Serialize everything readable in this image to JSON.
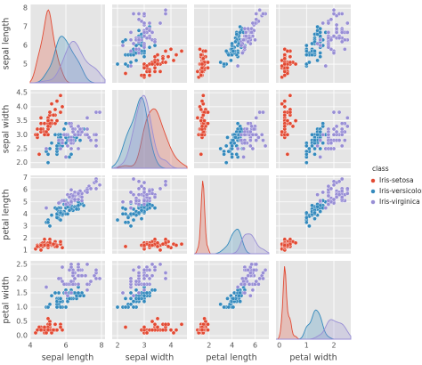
{
  "chart_data": {
    "type": "pairplot",
    "legend_title": "class",
    "legend": "right",
    "axes": [
      {
        "label": "sepal length",
        "lim": [
          4.0,
          8.2
        ],
        "xticks": [
          4,
          6,
          8
        ],
        "yticks": [
          5,
          6,
          7,
          8
        ]
      },
      {
        "label": "sepal width",
        "lim": [
          1.8,
          4.6
        ],
        "xticks": [
          2,
          3,
          4
        ],
        "yticks": [
          {
            "value": 2,
            "label": "2.0"
          },
          {
            "value": 2.5,
            "label": "2.5"
          },
          {
            "value": 3,
            "label": "3.0"
          },
          {
            "value": 3.5,
            "label": "3.5"
          },
          {
            "value": 4,
            "label": "4.0"
          },
          {
            "value": 4.5,
            "label": "4.5"
          }
        ]
      },
      {
        "label": "petal length",
        "lim": [
          0.7,
          7.2
        ],
        "xticks": [
          2,
          4,
          6
        ],
        "yticks": [
          1,
          2,
          3,
          4,
          5,
          6,
          7
        ]
      },
      {
        "label": "petal width",
        "lim": [
          -0.12,
          2.62
        ],
        "xticks": [
          0,
          1,
          2
        ],
        "yticks": [
          {
            "value": 0,
            "label": "0.0"
          },
          {
            "value": 0.5,
            "label": "0.5"
          },
          {
            "value": 1,
            "label": "1.0"
          },
          {
            "value": 1.5,
            "label": "1.5"
          },
          {
            "value": 2,
            "label": "2.0"
          },
          {
            "value": 2.5,
            "label": "2.5"
          }
        ]
      }
    ],
    "series": [
      {
        "name": "Iris-setosa",
        "color": "#e24a33",
        "data": [
          [
            5.1,
            4.9,
            4.7,
            4.6,
            5.0,
            5.4,
            4.6,
            5.0,
            4.4,
            4.9,
            5.4,
            4.8,
            4.8,
            4.3,
            5.8,
            5.7,
            5.4,
            5.1,
            5.7,
            5.1,
            5.4,
            5.1,
            4.6,
            5.1,
            4.8,
            5.0,
            5.0,
            5.2,
            5.2,
            4.7,
            4.8,
            5.4,
            5.2,
            5.5,
            4.9,
            5.0,
            5.5,
            4.9,
            4.4,
            5.1,
            5.0,
            4.5,
            4.4,
            5.0,
            5.1,
            4.8,
            5.1,
            4.6,
            5.3,
            5.0
          ],
          [
            3.5,
            3.0,
            3.2,
            3.1,
            3.6,
            3.9,
            3.4,
            3.4,
            2.9,
            3.1,
            3.7,
            3.4,
            3.0,
            3.0,
            4.0,
            4.4,
            3.9,
            3.5,
            3.8,
            3.8,
            3.4,
            3.7,
            3.6,
            3.3,
            3.4,
            3.0,
            3.4,
            3.5,
            3.4,
            3.2,
            3.1,
            3.4,
            4.1,
            4.2,
            3.1,
            3.2,
            3.5,
            3.1,
            3.0,
            3.4,
            3.5,
            2.3,
            3.2,
            3.5,
            3.8,
            3.0,
            3.8,
            3.2,
            3.7,
            3.3
          ],
          [
            1.4,
            1.4,
            1.3,
            1.5,
            1.4,
            1.7,
            1.4,
            1.5,
            1.4,
            1.5,
            1.5,
            1.6,
            1.4,
            1.1,
            1.2,
            1.5,
            1.3,
            1.4,
            1.7,
            1.5,
            1.7,
            1.5,
            1.0,
            1.7,
            1.9,
            1.6,
            1.6,
            1.5,
            1.4,
            1.6,
            1.6,
            1.5,
            1.5,
            1.4,
            1.5,
            1.2,
            1.3,
            1.5,
            1.3,
            1.5,
            1.3,
            1.3,
            1.3,
            1.6,
            1.9,
            1.4,
            1.6,
            1.4,
            1.5,
            1.4
          ],
          [
            0.2,
            0.2,
            0.2,
            0.2,
            0.2,
            0.4,
            0.3,
            0.2,
            0.2,
            0.1,
            0.2,
            0.2,
            0.1,
            0.1,
            0.2,
            0.4,
            0.4,
            0.3,
            0.3,
            0.3,
            0.2,
            0.4,
            0.2,
            0.5,
            0.2,
            0.2,
            0.4,
            0.2,
            0.2,
            0.2,
            0.2,
            0.4,
            0.1,
            0.2,
            0.1,
            0.2,
            0.2,
            0.1,
            0.2,
            0.2,
            0.3,
            0.3,
            0.2,
            0.6,
            0.4,
            0.3,
            0.2,
            0.2,
            0.2,
            0.2
          ]
        ]
      },
      {
        "name": "Iris-versicolor",
        "color": "#348abd",
        "data": [
          [
            7.0,
            6.4,
            6.9,
            5.5,
            6.5,
            5.7,
            6.3,
            4.9,
            6.6,
            5.2,
            5.0,
            5.9,
            6.0,
            6.1,
            5.6,
            6.7,
            5.6,
            5.8,
            6.2,
            5.6,
            5.9,
            6.1,
            6.3,
            6.1,
            6.4,
            6.6,
            6.8,
            6.7,
            6.0,
            5.7,
            5.5,
            5.5,
            5.8,
            6.0,
            5.4,
            6.0,
            6.7,
            6.3,
            5.6,
            5.5,
            5.5,
            6.1,
            5.8,
            5.0,
            5.6,
            5.7,
            5.7,
            6.2,
            5.1,
            5.7
          ],
          [
            3.2,
            3.2,
            3.1,
            2.3,
            2.8,
            2.8,
            3.3,
            2.4,
            2.9,
            2.7,
            2.0,
            3.0,
            2.2,
            2.9,
            2.9,
            3.1,
            3.0,
            2.7,
            2.2,
            2.5,
            3.2,
            2.8,
            2.5,
            2.8,
            2.9,
            3.0,
            2.8,
            3.0,
            2.9,
            2.6,
            2.4,
            2.4,
            2.7,
            2.7,
            3.0,
            3.4,
            3.1,
            2.3,
            3.0,
            2.5,
            2.6,
            3.0,
            2.6,
            2.3,
            2.7,
            3.0,
            2.9,
            2.9,
            2.5,
            2.8
          ],
          [
            4.7,
            4.5,
            4.9,
            4.0,
            4.6,
            4.5,
            4.7,
            3.3,
            4.6,
            3.9,
            3.5,
            4.2,
            4.0,
            4.7,
            3.6,
            4.4,
            4.5,
            4.1,
            4.5,
            3.9,
            4.8,
            4.0,
            4.9,
            4.7,
            4.3,
            4.4,
            4.8,
            5.0,
            4.5,
            3.5,
            3.8,
            3.7,
            3.9,
            5.1,
            4.5,
            4.5,
            4.7,
            4.4,
            4.1,
            4.0,
            4.4,
            4.6,
            4.0,
            3.3,
            4.2,
            4.2,
            4.2,
            4.3,
            3.0,
            4.1
          ],
          [
            1.4,
            1.5,
            1.5,
            1.3,
            1.5,
            1.3,
            1.6,
            1.0,
            1.3,
            1.4,
            1.0,
            1.5,
            1.0,
            1.4,
            1.3,
            1.4,
            1.5,
            1.0,
            1.5,
            1.1,
            1.8,
            1.3,
            1.5,
            1.2,
            1.3,
            1.4,
            1.4,
            1.7,
            1.5,
            1.0,
            1.1,
            1.0,
            1.2,
            1.6,
            1.5,
            1.6,
            1.5,
            1.3,
            1.3,
            1.3,
            1.2,
            1.4,
            1.2,
            1.0,
            1.3,
            1.2,
            1.3,
            1.3,
            1.1,
            1.3
          ]
        ]
      },
      {
        "name": "Iris-virginica",
        "color": "#988ed5",
        "data": [
          [
            6.3,
            5.8,
            7.1,
            6.3,
            6.5,
            7.6,
            4.9,
            7.3,
            6.7,
            7.2,
            6.5,
            6.4,
            6.8,
            5.7,
            5.8,
            6.4,
            6.5,
            7.7,
            7.7,
            6.0,
            6.9,
            5.6,
            7.7,
            6.3,
            6.7,
            7.2,
            6.2,
            6.1,
            6.4,
            7.2,
            7.4,
            7.9,
            6.4,
            6.3,
            6.1,
            7.7,
            6.3,
            6.4,
            6.0,
            6.9,
            6.7,
            6.9,
            5.8,
            6.8,
            6.7,
            6.7,
            6.3,
            6.5,
            6.2,
            5.9
          ],
          [
            3.3,
            2.7,
            3.0,
            2.9,
            3.0,
            3.0,
            2.5,
            2.9,
            2.5,
            3.6,
            3.2,
            2.7,
            3.0,
            2.5,
            2.8,
            3.2,
            3.0,
            3.8,
            2.6,
            2.2,
            3.2,
            2.8,
            2.8,
            2.7,
            3.3,
            3.2,
            2.8,
            3.0,
            2.8,
            3.0,
            2.8,
            3.8,
            2.8,
            2.8,
            2.6,
            3.0,
            3.4,
            3.1,
            3.0,
            3.1,
            3.1,
            3.1,
            2.7,
            3.2,
            3.3,
            3.0,
            2.5,
            3.0,
            3.4,
            3.0
          ],
          [
            6.0,
            5.1,
            5.9,
            5.6,
            5.8,
            6.6,
            4.5,
            6.3,
            5.8,
            6.1,
            5.1,
            5.3,
            5.5,
            5.0,
            5.1,
            5.3,
            5.5,
            6.7,
            6.9,
            5.0,
            5.7,
            4.9,
            6.7,
            4.9,
            5.7,
            6.0,
            4.8,
            4.9,
            5.6,
            5.8,
            6.1,
            6.4,
            5.6,
            5.1,
            5.6,
            6.1,
            5.6,
            5.5,
            4.8,
            5.4,
            5.6,
            5.1,
            5.1,
            5.9,
            5.7,
            5.2,
            5.0,
            5.2,
            5.4,
            5.1
          ],
          [
            2.5,
            1.9,
            2.1,
            1.8,
            2.2,
            2.1,
            1.7,
            1.8,
            1.8,
            2.5,
            2.0,
            1.9,
            2.1,
            2.0,
            2.4,
            2.3,
            1.8,
            2.2,
            2.3,
            1.5,
            2.3,
            2.0,
            2.0,
            1.8,
            2.1,
            1.8,
            1.8,
            1.8,
            2.1,
            1.6,
            1.9,
            2.0,
            2.2,
            1.5,
            1.4,
            2.3,
            2.4,
            1.8,
            1.8,
            2.1,
            2.4,
            2.3,
            1.9,
            2.3,
            2.5,
            2.3,
            1.9,
            2.0,
            2.3,
            1.8
          ]
        ]
      }
    ]
  }
}
